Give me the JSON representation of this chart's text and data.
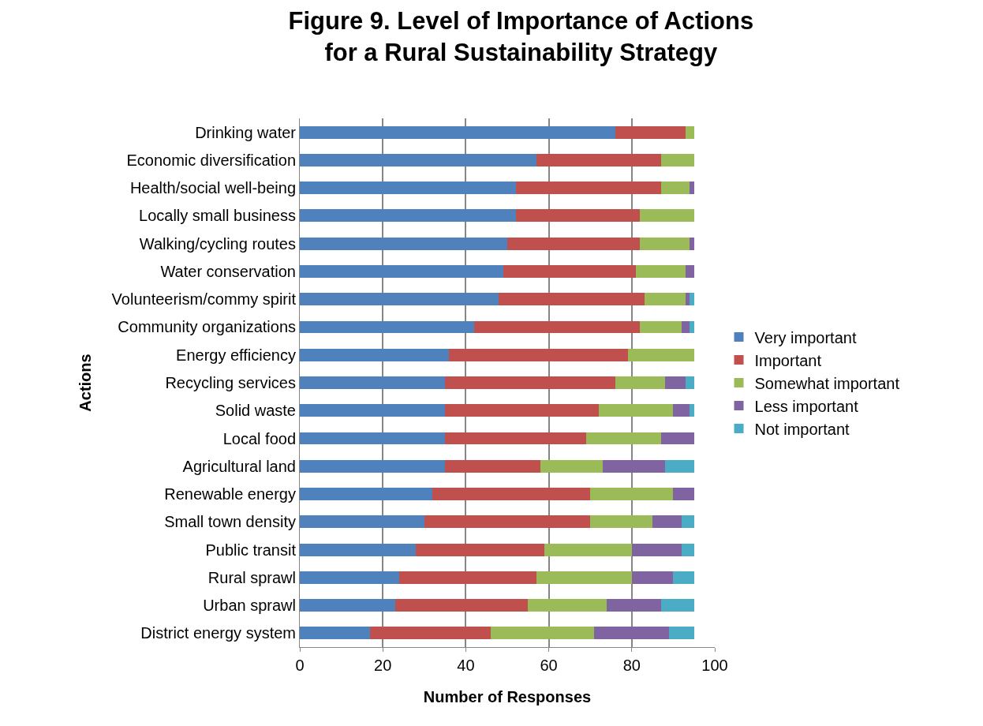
{
  "chart_data": {
    "type": "bar",
    "orientation": "horizontal",
    "stacked": true,
    "title": "Figure 9. Level of Importance of Actions\nfor a Rural Sustainability Strategy",
    "xlabel": "Number of Responses",
    "ylabel": "Actions",
    "categories": [
      "Drinking water",
      "Economic diversification",
      "Health/social well-being",
      "Locally small business",
      "Walking/cycling routes",
      "Water conservation",
      "Volunteerism/commy spirit",
      "Community organizations",
      "Energy efficiency",
      "Recycling services",
      "Solid waste",
      "Local food",
      "Agricultural land",
      "Renewable energy",
      "Small town density",
      "Public transit",
      "Rural sprawl",
      "Urban sprawl",
      "District energy system"
    ],
    "series": [
      {
        "name": "Very important",
        "color": "#4f81bd",
        "values": [
          76,
          57,
          52,
          52,
          50,
          49,
          48,
          42,
          36,
          35,
          35,
          35,
          35,
          32,
          30,
          28,
          24,
          23,
          17
        ]
      },
      {
        "name": "Important",
        "color": "#c0504d",
        "values": [
          17,
          30,
          35,
          30,
          32,
          32,
          35,
          40,
          43,
          41,
          37,
          34,
          23,
          38,
          40,
          31,
          33,
          32,
          29
        ]
      },
      {
        "name": "Somewhat important",
        "color": "#9bbb59",
        "values": [
          2,
          8,
          7,
          13,
          12,
          12,
          10,
          10,
          16,
          12,
          18,
          18,
          15,
          20,
          15,
          21,
          23,
          19,
          25
        ]
      },
      {
        "name": "Less important",
        "color": "#8064a2",
        "values": [
          0,
          0,
          1,
          0,
          1,
          2,
          1,
          2,
          0,
          5,
          4,
          8,
          15,
          5,
          7,
          12,
          10,
          13,
          18
        ]
      },
      {
        "name": "Not important",
        "color": "#4bacc6",
        "values": [
          0,
          0,
          0,
          0,
          0,
          0,
          1,
          1,
          0,
          2,
          1,
          0,
          7,
          0,
          3,
          3,
          5,
          8,
          6
        ]
      }
    ],
    "xlim": [
      0,
      100
    ],
    "xticks": [
      0,
      20,
      40,
      60,
      80,
      100
    ],
    "grid": "x",
    "legend": "right"
  }
}
